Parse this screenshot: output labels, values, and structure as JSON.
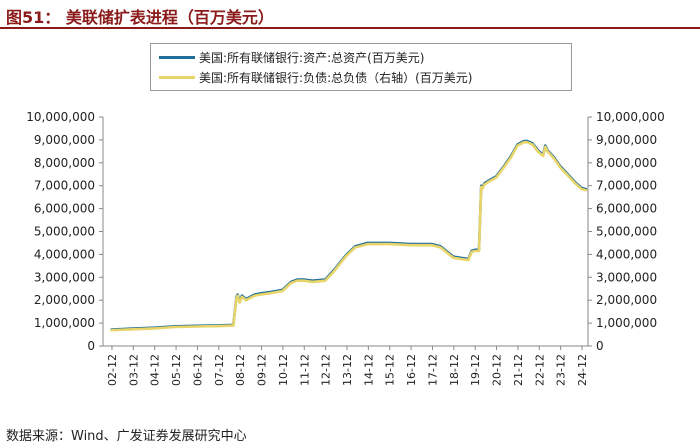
{
  "title": "图51：  美联储扩表进程（百万美元）",
  "source": "数据来源：Wind、广发证券发展研究中心",
  "colors": {
    "title": "#8b1a1a",
    "assets": "#1f6f9c",
    "liabilities": "#e8d56a"
  },
  "chart_data": {
    "type": "line",
    "legend_position": "top-center",
    "grid": false,
    "ylim_left": [
      0,
      10000000
    ],
    "ylim_right": [
      0,
      10000000
    ],
    "left_ticks": [
      "0",
      "1,000,000",
      "2,000,000",
      "3,000,000",
      "4,000,000",
      "5,000,000",
      "6,000,000",
      "7,000,000",
      "8,000,000",
      "9,000,000",
      "10,000,000"
    ],
    "right_ticks": [
      "0",
      "1,000,000",
      "2,000,000",
      "3,000,000",
      "4,000,000",
      "5,000,000",
      "6,000,000",
      "7,000,000",
      "8,000,000",
      "9,000,000",
      "10,000,000"
    ],
    "x_ticks": [
      "02-12",
      "03-12",
      "04-12",
      "05-12",
      "06-12",
      "07-12",
      "08-12",
      "09-12",
      "10-12",
      "11-12",
      "12-12",
      "13-12",
      "14-12",
      "15-12",
      "16-12",
      "17-12",
      "18-12",
      "19-12",
      "20-12",
      "21-12",
      "22-12",
      "23-12",
      "24-12"
    ],
    "series": [
      {
        "name": "美国:所有联储银行:资产:总资产(百万美元)",
        "axis": "left",
        "x": [
          2002.9,
          2003.9,
          2004.9,
          2005.9,
          2006.9,
          2007.9,
          2008.6,
          2008.75,
          2008.8,
          2008.9,
          2009.0,
          2009.2,
          2009.4,
          2009.6,
          2009.9,
          2010.3,
          2010.9,
          2011.3,
          2011.6,
          2011.9,
          2012.3,
          2012.9,
          2013.3,
          2013.9,
          2014.3,
          2014.9,
          2015.9,
          2016.9,
          2017.9,
          2018.3,
          2018.9,
          2019.6,
          2019.75,
          2019.9,
          2020.1,
          2020.2,
          2020.25,
          2020.35,
          2020.6,
          2020.9,
          2021.3,
          2021.6,
          2021.9,
          2022.2,
          2022.35,
          2022.6,
          2022.9,
          2023.1,
          2023.2,
          2023.3,
          2023.6,
          2023.9,
          2024.3,
          2024.6,
          2024.9,
          2025.1
        ],
        "values": [
          720000,
          760000,
          800000,
          860000,
          880000,
          900000,
          920000,
          2150000,
          2250000,
          1950000,
          2200000,
          2050000,
          2150000,
          2250000,
          2300000,
          2350000,
          2450000,
          2800000,
          2900000,
          2900000,
          2850000,
          2900000,
          3300000,
          4000000,
          4350000,
          4500000,
          4500000,
          4450000,
          4450000,
          4350000,
          3900000,
          3800000,
          4150000,
          4200000,
          4200000,
          7000000,
          6900000,
          7100000,
          7250000,
          7400000,
          7900000,
          8300000,
          8800000,
          8950000,
          8950000,
          8850000,
          8500000,
          8350000,
          8750000,
          8550000,
          8250000,
          7850000,
          7450000,
          7150000,
          6900000,
          6850000
        ]
      },
      {
        "name": "美国:所有联储银行:负债:总负债（右轴）(百万美元)",
        "axis": "right",
        "x": [
          2002.9,
          2003.9,
          2004.9,
          2005.9,
          2006.9,
          2007.9,
          2008.6,
          2008.75,
          2008.8,
          2008.9,
          2009.0,
          2009.2,
          2009.4,
          2009.6,
          2009.9,
          2010.3,
          2010.9,
          2011.3,
          2011.6,
          2011.9,
          2012.3,
          2012.9,
          2013.3,
          2013.9,
          2014.3,
          2014.9,
          2015.9,
          2016.9,
          2017.9,
          2018.3,
          2018.9,
          2019.6,
          2019.75,
          2019.9,
          2020.1,
          2020.2,
          2020.25,
          2020.35,
          2020.6,
          2020.9,
          2021.3,
          2021.6,
          2021.9,
          2022.2,
          2022.35,
          2022.6,
          2022.9,
          2023.1,
          2023.2,
          2023.3,
          2023.6,
          2023.9,
          2024.3,
          2024.6,
          2024.9,
          2025.1
        ],
        "values": [
          690000,
          730000,
          770000,
          830000,
          850000,
          870000,
          890000,
          2100000,
          2200000,
          1900000,
          2150000,
          2000000,
          2100000,
          2200000,
          2250000,
          2300000,
          2400000,
          2750000,
          2850000,
          2850000,
          2800000,
          2850000,
          3250000,
          3950000,
          4300000,
          4450000,
          4450000,
          4400000,
          4400000,
          4300000,
          3850000,
          3750000,
          4100000,
          4150000,
          4150000,
          6950000,
          6850000,
          7050000,
          7200000,
          7350000,
          7850000,
          8250000,
          8750000,
          8900000,
          8900000,
          8800000,
          8450000,
          8300000,
          8700000,
          8500000,
          8200000,
          7800000,
          7400000,
          7100000,
          6850000,
          6800000
        ]
      }
    ]
  }
}
